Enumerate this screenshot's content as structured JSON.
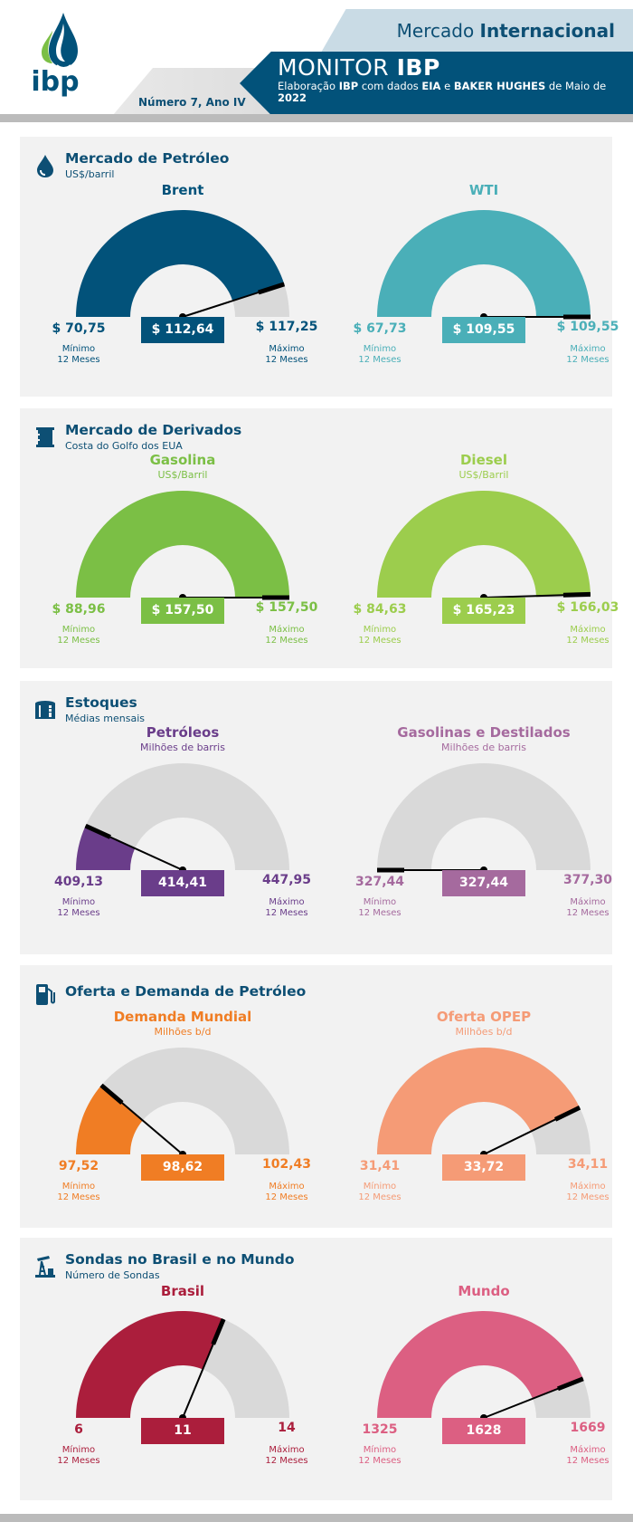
{
  "header": {
    "mercado_pre": "Mercado ",
    "mercado_bold": "Internacional",
    "monitor_pre": "MONITOR ",
    "monitor_bold": "IBP",
    "subtitle_parts": [
      "Elaboração ",
      "IBP",
      " com dados ",
      "EIA",
      " e ",
      "BAKER HUGHES",
      " de Maio de ",
      "2022"
    ],
    "numero": "Número 7, Ano IV",
    "logo_text": "ibp"
  },
  "colors": {
    "navy": "#0d4f74",
    "header_dark": "#02527a",
    "track": "#d9d9d9",
    "needle": "#000000"
  },
  "min_label_lines": [
    "Mínimo",
    "12 Meses"
  ],
  "max_label_lines": [
    "Máximo",
    "12 Meses"
  ],
  "panels": [
    {
      "title": "Mercado de Petróleo",
      "subtitle": "US$/barril",
      "icon": "oil-drop-icon",
      "gauges": [
        {
          "name": "Brent",
          "unit": "",
          "color": "#02527a",
          "min": 70.75,
          "max": 117.25,
          "value": 112.64,
          "min_text": "$ 70,75",
          "max_text": "$ 117,25",
          "value_text": "$ 112,64"
        },
        {
          "name": "WTI",
          "unit": "",
          "color": "#4aafb8",
          "min": 67.73,
          "max": 109.55,
          "value": 109.55,
          "min_text": "$ 67,73",
          "max_text": "$ 109,55",
          "value_text": "$ 109,55"
        }
      ]
    },
    {
      "title": "Mercado de Derivados",
      "subtitle": "Costa do Golfo dos EUA",
      "icon": "barrel-icon",
      "gauges": [
        {
          "name": "Gasolina",
          "unit": "US$/Barril",
          "color": "#7bbf45",
          "min": 88.96,
          "max": 157.5,
          "value": 157.5,
          "min_text": "$ 88,96",
          "max_text": "$ 157,50",
          "value_text": "$ 157,50"
        },
        {
          "name": "Diesel",
          "unit": "US$/Barril",
          "color": "#9ccd4d",
          "min": 84.63,
          "max": 166.03,
          "value": 165.23,
          "min_text": "$ 84,63",
          "max_text": "$ 166,03",
          "value_text": "$ 165,23"
        }
      ]
    },
    {
      "title": "Estoques",
      "subtitle": "Médias mensais",
      "icon": "storage-tank-icon",
      "gauges": [
        {
          "name": "Petróleos",
          "unit": "Milhões de barris",
          "color": "#6a3d8a",
          "min": 409.13,
          "max": 447.95,
          "value": 414.41,
          "min_text": "409,13",
          "max_text": "447,95",
          "value_text": "414,41"
        },
        {
          "name": "Gasolinas e Destilados",
          "unit": "Milhões de barris",
          "color": "#a56a9e",
          "min": 327.44,
          "max": 377.3,
          "value": 327.44,
          "min_text": "327,44",
          "max_text": "377,30",
          "value_text": "327,44"
        }
      ]
    },
    {
      "title": "Oferta e Demanda de Petróleo",
      "subtitle": "",
      "icon": "fuel-pump-icon",
      "gauges": [
        {
          "name": "Demanda Mundial",
          "unit": "Milhões b/d",
          "color": "#f07d24",
          "min": 97.52,
          "max": 102.43,
          "value": 98.62,
          "min_text": "97,52",
          "max_text": "102,43",
          "value_text": "98,62"
        },
        {
          "name": "Oferta OPEP",
          "unit": "Milhões b/d",
          "color": "#f59b76",
          "min": 31.41,
          "max": 34.11,
          "value": 33.72,
          "min_text": "31,41",
          "max_text": "34,11",
          "value_text": "33,72"
        }
      ]
    },
    {
      "title": "Sondas no Brasil e no Mundo",
      "subtitle": "Número de Sondas",
      "icon": "oil-rig-icon",
      "gauges": [
        {
          "name": "Brasil",
          "unit": "",
          "color": "#ab1e3c",
          "min": 6,
          "max": 14,
          "value": 11,
          "min_text": "6",
          "max_text": "14",
          "value_text": "11"
        },
        {
          "name": "Mundo",
          "unit": "",
          "color": "#dc5f82",
          "min": 1325,
          "max": 1669,
          "value": 1628,
          "min_text": "1325",
          "max_text": "1669",
          "value_text": "1628"
        }
      ]
    }
  ],
  "chart_data": [
    {
      "type": "gauge",
      "title": "Brent",
      "min": 70.75,
      "max": 117.25,
      "value": 112.64,
      "unit": "US$/barril"
    },
    {
      "type": "gauge",
      "title": "WTI",
      "min": 67.73,
      "max": 109.55,
      "value": 109.55,
      "unit": "US$/barril"
    },
    {
      "type": "gauge",
      "title": "Gasolina",
      "min": 88.96,
      "max": 157.5,
      "value": 157.5,
      "unit": "US$/Barril"
    },
    {
      "type": "gauge",
      "title": "Diesel",
      "min": 84.63,
      "max": 166.03,
      "value": 165.23,
      "unit": "US$/Barril"
    },
    {
      "type": "gauge",
      "title": "Petróleos",
      "min": 409.13,
      "max": 447.95,
      "value": 414.41,
      "unit": "Milhões de barris"
    },
    {
      "type": "gauge",
      "title": "Gasolinas e Destilados",
      "min": 327.44,
      "max": 377.3,
      "value": 327.44,
      "unit": "Milhões de barris"
    },
    {
      "type": "gauge",
      "title": "Demanda Mundial",
      "min": 97.52,
      "max": 102.43,
      "value": 98.62,
      "unit": "Milhões b/d"
    },
    {
      "type": "gauge",
      "title": "Oferta OPEP",
      "min": 31.41,
      "max": 34.11,
      "value": 33.72,
      "unit": "Milhões b/d"
    },
    {
      "type": "gauge",
      "title": "Brasil",
      "min": 6,
      "max": 14,
      "value": 11,
      "unit": "Número de Sondas"
    },
    {
      "type": "gauge",
      "title": "Mundo",
      "min": 1325,
      "max": 1669,
      "value": 1628,
      "unit": "Número de Sondas"
    }
  ]
}
